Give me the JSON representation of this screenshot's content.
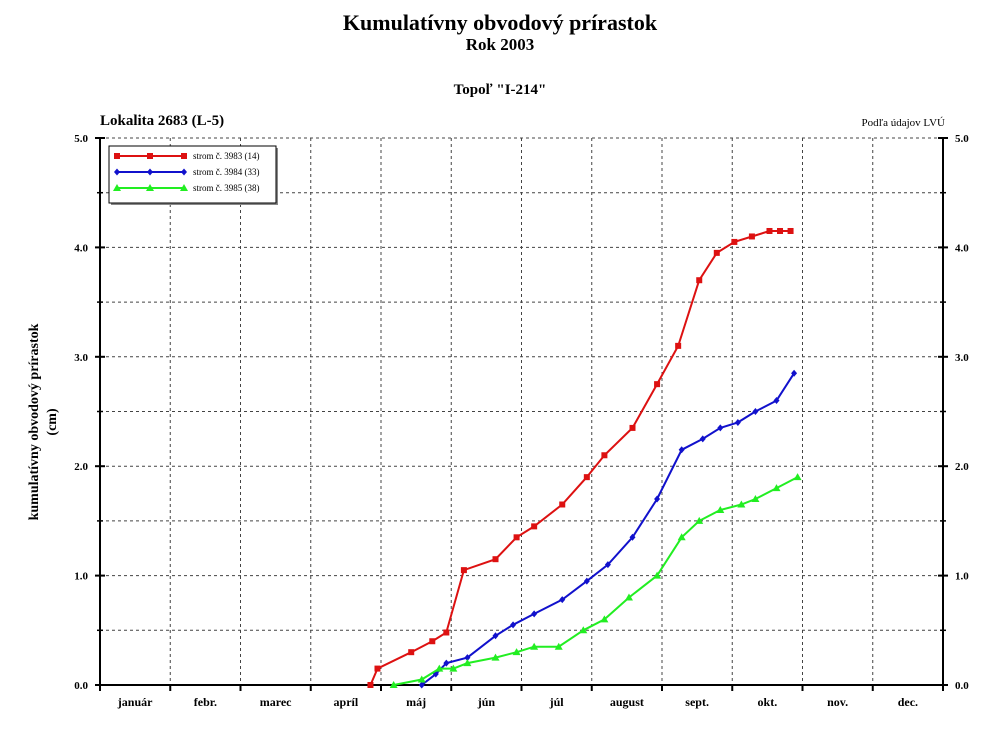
{
  "header": {
    "title": "Kumulatívny obvodový prírastok",
    "subtitle": "Rok 2003",
    "species": "Topoľ \"I-214\"",
    "locality": "Lokalita 2683 (L-5)",
    "source": "Podľa údajov LVÚ"
  },
  "chart_data": {
    "type": "line",
    "title": "Kumulatívny obvodový prírastok",
    "xlabel": "",
    "ylabel": "kumulatívny obvodový prírastok (cm)",
    "ylabel_lines": [
      "kumulatívny obvodový prírastok",
      "(cm)"
    ],
    "ylim": [
      0,
      5
    ],
    "xlim_months": [
      0,
      12
    ],
    "y_ticks": [
      "0.0",
      "1.0",
      "2.0",
      "3.0",
      "4.0",
      "5.0"
    ],
    "y_tick_values": [
      0,
      1,
      2,
      3,
      4,
      5
    ],
    "months": [
      "január",
      "febr.",
      "marec",
      "apríl",
      "máj",
      "jún",
      "júl",
      "august",
      "sept.",
      "okt.",
      "nov.",
      "dec."
    ],
    "x_unit": "month index (0 = 1 January, 12 = 31 December)",
    "grid": true,
    "legend_position": "top-left",
    "series": [
      {
        "name": "strom č. 3983 (14)",
        "color": "#dd1111",
        "marker": "square",
        "x": [
          3.85,
          3.95,
          4.43,
          4.73,
          4.93,
          5.18,
          5.63,
          5.93,
          6.18,
          6.58,
          6.93,
          7.18,
          7.58,
          7.93,
          8.23,
          8.53,
          8.78,
          9.03,
          9.28,
          9.53,
          9.68,
          9.83
        ],
        "y": [
          0.0,
          0.15,
          0.3,
          0.4,
          0.48,
          1.05,
          1.15,
          1.35,
          1.45,
          1.65,
          1.9,
          2.1,
          2.35,
          2.75,
          3.1,
          3.7,
          3.95,
          4.05,
          4.1,
          4.15,
          4.15,
          4.15
        ]
      },
      {
        "name": "strom č. 3984 (33)",
        "color": "#1111cc",
        "marker": "diamond",
        "x": [
          4.58,
          4.78,
          4.93,
          5.23,
          5.63,
          5.88,
          6.18,
          6.58,
          6.93,
          7.23,
          7.58,
          7.93,
          8.28,
          8.58,
          8.83,
          9.08,
          9.33,
          9.63,
          9.88
        ],
        "y": [
          0.0,
          0.1,
          0.2,
          0.25,
          0.45,
          0.55,
          0.65,
          0.78,
          0.95,
          1.1,
          1.35,
          1.7,
          2.15,
          2.25,
          2.35,
          2.4,
          2.5,
          2.6,
          2.85
        ]
      },
      {
        "name": "strom č. 3985 (38)",
        "color": "#22ee22",
        "marker": "triangle",
        "x": [
          4.18,
          4.58,
          4.83,
          5.03,
          5.23,
          5.63,
          5.93,
          6.18,
          6.53,
          6.88,
          7.18,
          7.53,
          7.93,
          8.28,
          8.53,
          8.83,
          9.13,
          9.33,
          9.63,
          9.93
        ],
        "y": [
          0.0,
          0.05,
          0.15,
          0.15,
          0.2,
          0.25,
          0.3,
          0.35,
          0.35,
          0.5,
          0.6,
          0.8,
          1.0,
          1.35,
          1.5,
          1.6,
          1.65,
          1.7,
          1.8,
          1.9
        ]
      }
    ]
  }
}
